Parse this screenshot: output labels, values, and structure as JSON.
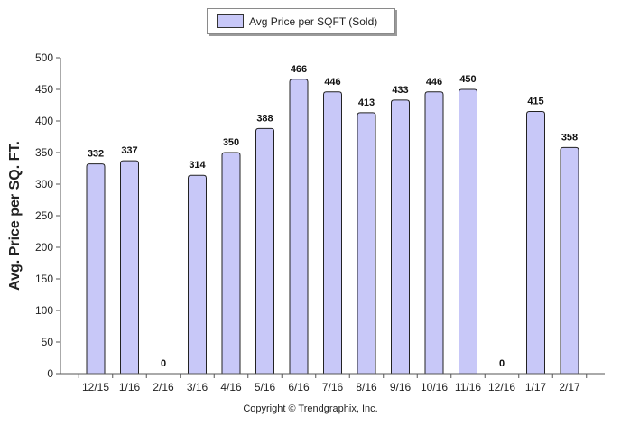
{
  "chart_data": {
    "type": "bar",
    "categories": [
      "12/15",
      "1/16",
      "2/16",
      "3/16",
      "4/16",
      "5/16",
      "6/16",
      "7/16",
      "8/16",
      "9/16",
      "10/16",
      "11/16",
      "12/16",
      "1/17",
      "2/17"
    ],
    "series": [
      {
        "name": "Avg Price per SQFT (Sold)",
        "values": [
          332,
          337,
          0,
          314,
          350,
          388,
          466,
          446,
          413,
          433,
          446,
          450,
          0,
          415,
          358
        ]
      }
    ],
    "data_labels": [
      "332",
      "337",
      "0",
      "314",
      "350",
      "388",
      "466",
      "446",
      "413",
      "433",
      "446",
      "450",
      "0",
      "415",
      "358"
    ],
    "y_ticks": [
      "0",
      "50",
      "100",
      "150",
      "200",
      "250",
      "300",
      "350",
      "400",
      "450",
      "500"
    ],
    "ylabel": "Avg. Price per SQ. FT.",
    "xlabel": "",
    "ylim": [
      0,
      500
    ],
    "grid": false,
    "legend_position": "top-center",
    "bar_color": "#c8c8f8"
  },
  "footer": {
    "copyright": "Copyright © Trendgraphix, Inc."
  }
}
